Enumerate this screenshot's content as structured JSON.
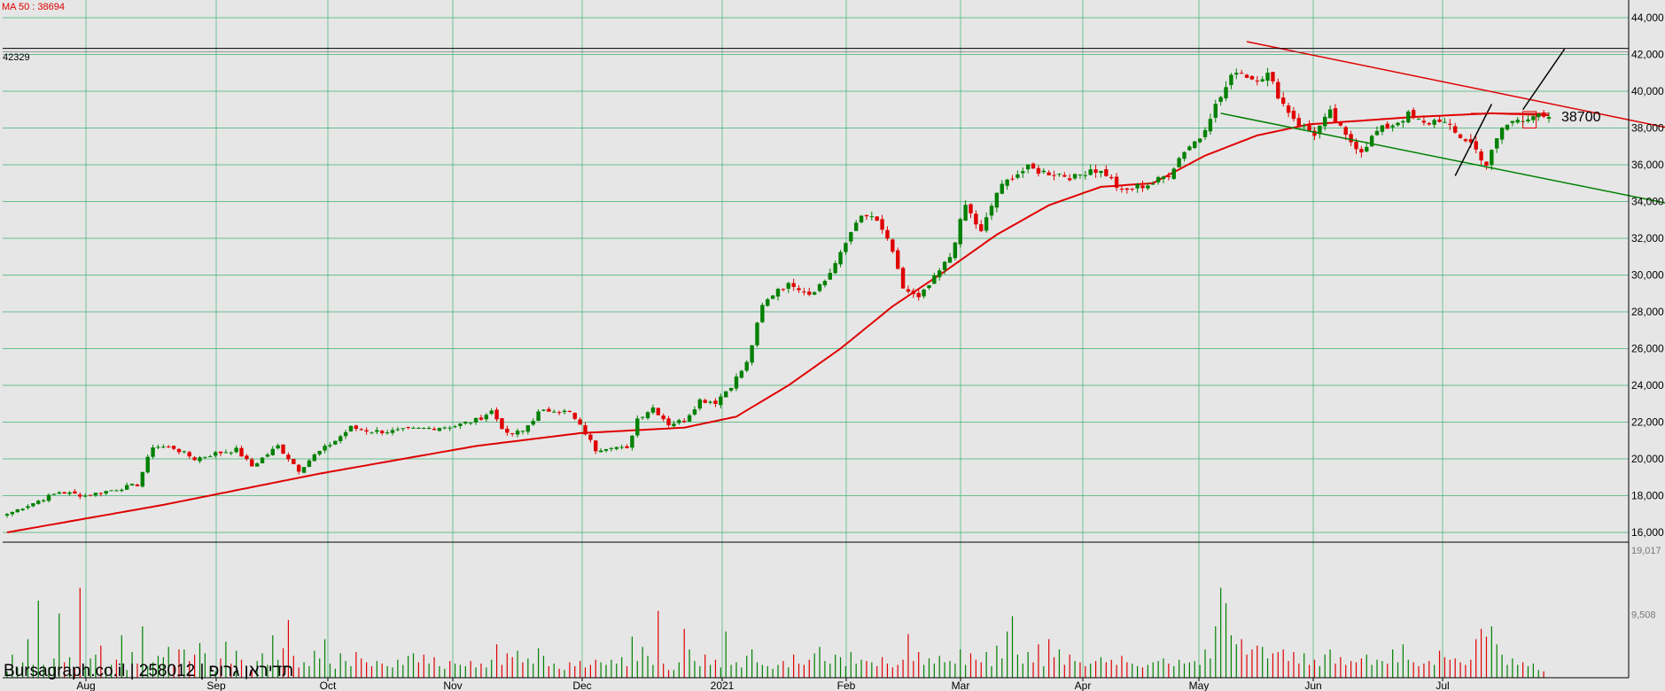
{
  "chart_data": {
    "type": "candlestick",
    "ma_label": "MA 50 : 38694",
    "reference_price_label": "42329",
    "reference_price": 42329,
    "annotation_price_label": "38700",
    "watermark": "Bursagraph.co.il | 258012 | תדיראן גרופ",
    "x_tick_labels": [
      "Aug",
      "Sep",
      "Oct",
      "Nov",
      "Dec",
      "2021",
      "Feb",
      "Mar",
      "Apr",
      "May",
      "Jun",
      "Jul"
    ],
    "y_tick_labels": [
      "44,000",
      "42,000",
      "40,000",
      "38,000",
      "36,000",
      "34,000",
      "32,000",
      "30,000",
      "28,000",
      "26,000",
      "24,000",
      "22,000",
      "20,000",
      "18,000",
      "16,000"
    ],
    "y_values": [
      44000,
      42000,
      40000,
      38000,
      36000,
      34000,
      32000,
      30000,
      28000,
      26000,
      24000,
      22000,
      20000,
      18000,
      16000
    ],
    "ylim": [
      15500,
      44500
    ],
    "volume_tick_labels": [
      "19,017",
      "9,508"
    ],
    "volume_ticks": [
      19017,
      9508
    ],
    "volume_max": 19017,
    "price_anchors": [
      [
        0,
        17000
      ],
      [
        5,
        17600
      ],
      [
        10,
        18200
      ],
      [
        15,
        18000
      ],
      [
        20,
        18300
      ],
      [
        25,
        18600
      ],
      [
        28,
        20700
      ],
      [
        32,
        20600
      ],
      [
        36,
        20000
      ],
      [
        40,
        20300
      ],
      [
        44,
        20500
      ],
      [
        47,
        19600
      ],
      [
        52,
        20700
      ],
      [
        56,
        19400
      ],
      [
        59,
        20200
      ],
      [
        63,
        21000
      ],
      [
        66,
        21700
      ],
      [
        70,
        21500
      ],
      [
        74,
        21500
      ],
      [
        78,
        21600
      ],
      [
        82,
        21700
      ],
      [
        86,
        21800
      ],
      [
        90,
        22100
      ],
      [
        93,
        22600
      ],
      [
        96,
        21300
      ],
      [
        99,
        21500
      ],
      [
        102,
        22500
      ],
      [
        105,
        22700
      ],
      [
        108,
        22500
      ],
      [
        111,
        21400
      ],
      [
        113,
        20500
      ],
      [
        116,
        20700
      ],
      [
        119,
        20500
      ],
      [
        121,
        22200
      ],
      [
        124,
        22800
      ],
      [
        127,
        21900
      ],
      [
        130,
        22100
      ],
      [
        133,
        23200
      ],
      [
        136,
        23100
      ],
      [
        139,
        24000
      ],
      [
        142,
        25200
      ],
      [
        145,
        28300
      ],
      [
        148,
        29300
      ],
      [
        151,
        29500
      ],
      [
        154,
        29000
      ],
      [
        157,
        29700
      ],
      [
        160,
        31100
      ],
      [
        163,
        33000
      ],
      [
        166,
        33200
      ],
      [
        169,
        32000
      ],
      [
        172,
        29300
      ],
      [
        175,
        28700
      ],
      [
        178,
        29800
      ],
      [
        181,
        31000
      ],
      [
        184,
        33800
      ],
      [
        187,
        32300
      ],
      [
        190,
        34500
      ],
      [
        193,
        35400
      ],
      [
        196,
        35800
      ],
      [
        199,
        35600
      ],
      [
        202,
        35500
      ],
      [
        205,
        35300
      ],
      [
        208,
        35800
      ],
      [
        211,
        35500
      ],
      [
        214,
        34500
      ],
      [
        217,
        34800
      ],
      [
        220,
        35000
      ],
      [
        223,
        35500
      ],
      [
        226,
        36800
      ],
      [
        229,
        37500
      ],
      [
        231,
        38700
      ],
      [
        233,
        39700
      ],
      [
        236,
        41200
      ],
      [
        239,
        40700
      ],
      [
        242,
        40900
      ],
      [
        245,
        39300
      ],
      [
        248,
        38200
      ],
      [
        251,
        37700
      ],
      [
        254,
        38800
      ],
      [
        257,
        37500
      ],
      [
        260,
        36800
      ],
      [
        263,
        37800
      ],
      [
        266,
        38200
      ],
      [
        269,
        38700
      ],
      [
        272,
        38200
      ],
      [
        275,
        38500
      ],
      [
        278,
        37700
      ],
      [
        281,
        37200
      ],
      [
        284,
        36000
      ],
      [
        287,
        38000
      ],
      [
        290,
        38500
      ],
      [
        293,
        38700
      ],
      [
        296,
        38400
      ]
    ],
    "ma_anchors": [
      [
        0,
        16000
      ],
      [
        30,
        17500
      ],
      [
        60,
        19200
      ],
      [
        90,
        20700
      ],
      [
        110,
        21400
      ],
      [
        130,
        21700
      ],
      [
        140,
        22300
      ],
      [
        150,
        24000
      ],
      [
        160,
        26000
      ],
      [
        170,
        28300
      ],
      [
        180,
        30200
      ],
      [
        190,
        32200
      ],
      [
        200,
        33800
      ],
      [
        210,
        34800
      ],
      [
        220,
        35000
      ],
      [
        230,
        36500
      ],
      [
        240,
        37600
      ],
      [
        250,
        38200
      ],
      [
        270,
        38600
      ],
      [
        285,
        38800
      ],
      [
        296,
        38700
      ]
    ],
    "volume_values": [
      5,
      18,
      8,
      12,
      30,
      10,
      60,
      10,
      8,
      15,
      50,
      12,
      16,
      7,
      70,
      9,
      15,
      18,
      25,
      8,
      10,
      14,
      33,
      6,
      20,
      11,
      40,
      9,
      12,
      17,
      16,
      24,
      10,
      22,
      22,
      13,
      18,
      27,
      19,
      9,
      5,
      15,
      28,
      11,
      21,
      14,
      8,
      6,
      13,
      19,
      10,
      33,
      14,
      23,
      45,
      17,
      8,
      12,
      9,
      21,
      15,
      30,
      11,
      7,
      19,
      13,
      9,
      20,
      15,
      12,
      9,
      13,
      11,
      9,
      8,
      14,
      10,
      17,
      19,
      12,
      18,
      11,
      16,
      9,
      7,
      13,
      11,
      10,
      9,
      13,
      8,
      11,
      8,
      14,
      26,
      10,
      19,
      16,
      21,
      12,
      15,
      11,
      23,
      17,
      9,
      11,
      7,
      6,
      12,
      9,
      13,
      8,
      10,
      14,
      12,
      10,
      14,
      11,
      16,
      9,
      32,
      13,
      24,
      17,
      10,
      52,
      11,
      6,
      6,
      12,
      38,
      22,
      13,
      9,
      18,
      10,
      14,
      8,
      36,
      10,
      12,
      8,
      17,
      22,
      12,
      10,
      9,
      7,
      10,
      13,
      8,
      18,
      11,
      10,
      14,
      19,
      24,
      13,
      11,
      18,
      16,
      9,
      20,
      11,
      14,
      13,
      12,
      9,
      16,
      11,
      8,
      10,
      14,
      34,
      13,
      20,
      10,
      15,
      11,
      17,
      12,
      13,
      11,
      22,
      10,
      19,
      14,
      12,
      20,
      9,
      25,
      15,
      36,
      48,
      18,
      11,
      20,
      12,
      26,
      9,
      30,
      16,
      22,
      10,
      18,
      13,
      12,
      9,
      11,
      13,
      16,
      12,
      14,
      10,
      17,
      12,
      11,
      9,
      8,
      10,
      12,
      13,
      15,
      11,
      9,
      14,
      11,
      12,
      13,
      10,
      22,
      15,
      40,
      70,
      58,
      33,
      26,
      30,
      18,
      22,
      25,
      24,
      15,
      19,
      20,
      22,
      13,
      20,
      11,
      19,
      10,
      14,
      9,
      18,
      22,
      11,
      16,
      10,
      13,
      12,
      15,
      18,
      10,
      14,
      13,
      11,
      22,
      12,
      26,
      14,
      12,
      9,
      11,
      13,
      10,
      21,
      16,
      14,
      15,
      12,
      10,
      14,
      30,
      38,
      32,
      40,
      26,
      18,
      10,
      15,
      10,
      12,
      9,
      11,
      6,
      5
    ]
  }
}
